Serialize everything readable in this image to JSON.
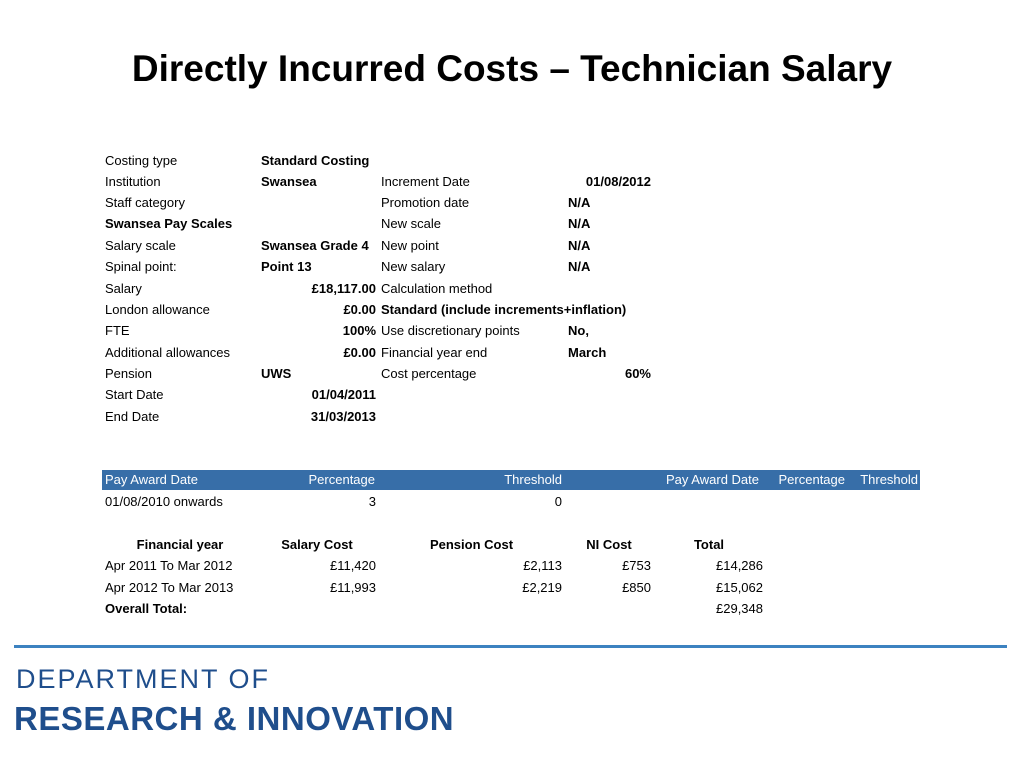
{
  "title": "Directly Incurred Costs – Technician  Salary",
  "details_left": [
    {
      "label": "Costing type",
      "value": "Standard Costing",
      "align": "left"
    },
    {
      "label": "Institution",
      "value": "Swansea",
      "align": "left"
    },
    {
      "label": "Staff category",
      "value": "",
      "align": "left"
    },
    {
      "label": "Swansea Pay Scales",
      "value": "",
      "align": "left"
    },
    {
      "label": "Salary scale",
      "value": "Swansea Grade 4",
      "align": "left"
    },
    {
      "label": "Spinal point:",
      "value": "Point 13",
      "align": "left"
    },
    {
      "label": "Salary",
      "value": "£18,117.00",
      "align": "right"
    },
    {
      "label": "London allowance",
      "value": "£0.00",
      "align": "right"
    },
    {
      "label": "FTE",
      "value": "100%",
      "align": "right"
    },
    {
      "label": "Additional allowances",
      "value": "£0.00",
      "align": "right"
    },
    {
      "label": "Pension",
      "value": "UWS",
      "align": "left"
    },
    {
      "label": "Start Date",
      "value": "01/04/2011",
      "align": "right"
    },
    {
      "label": "End Date",
      "value": "31/03/2013",
      "align": "right"
    }
  ],
  "details_right": [
    {
      "label": "Increment Date",
      "value": "01/08/2012"
    },
    {
      "label": "Promotion date",
      "value": "N/A"
    },
    {
      "label": "New scale",
      "value": "N/A"
    },
    {
      "label": "New point",
      "value": "N/A"
    },
    {
      "label": "New salary",
      "value": "N/A"
    },
    {
      "label": "Calculation method",
      "value": ""
    },
    {
      "label": "Standard (include increments+inflation)",
      "value": ""
    },
    {
      "label": "Use discretionary points",
      "value": "No,"
    },
    {
      "label": "Financial year end",
      "value": "March"
    },
    {
      "label": "Cost percentage",
      "value": "60%"
    }
  ],
  "pay_award": {
    "headers": [
      "Pay Award Date",
      "Percentage",
      "Threshold",
      "Pay Award Date",
      "Percentage",
      "Threshold"
    ],
    "row": [
      "01/08/2010 onwards",
      "3",
      "0"
    ]
  },
  "financial": {
    "headers": [
      "Financial year",
      "Salary Cost",
      "Pension Cost",
      "NI Cost",
      "Total"
    ],
    "rows": [
      [
        "Apr 2011 To Mar 2012",
        "£11,420",
        "£2,113",
        "£753",
        "£14,286"
      ],
      [
        "Apr 2012 To Mar 2013",
        "£11,993",
        "£2,219",
        "£850",
        "£15,062"
      ]
    ],
    "overall_label": "Overall Total:",
    "overall_value": "£29,348"
  },
  "footer": {
    "line1": "DEPARTMENT OF",
    "line2": "RESEARCH & INNOVATION"
  },
  "colors": {
    "header_band": "#376ea8",
    "footer_text": "#1f4e8c",
    "footer_rule": "#3c82c0"
  }
}
